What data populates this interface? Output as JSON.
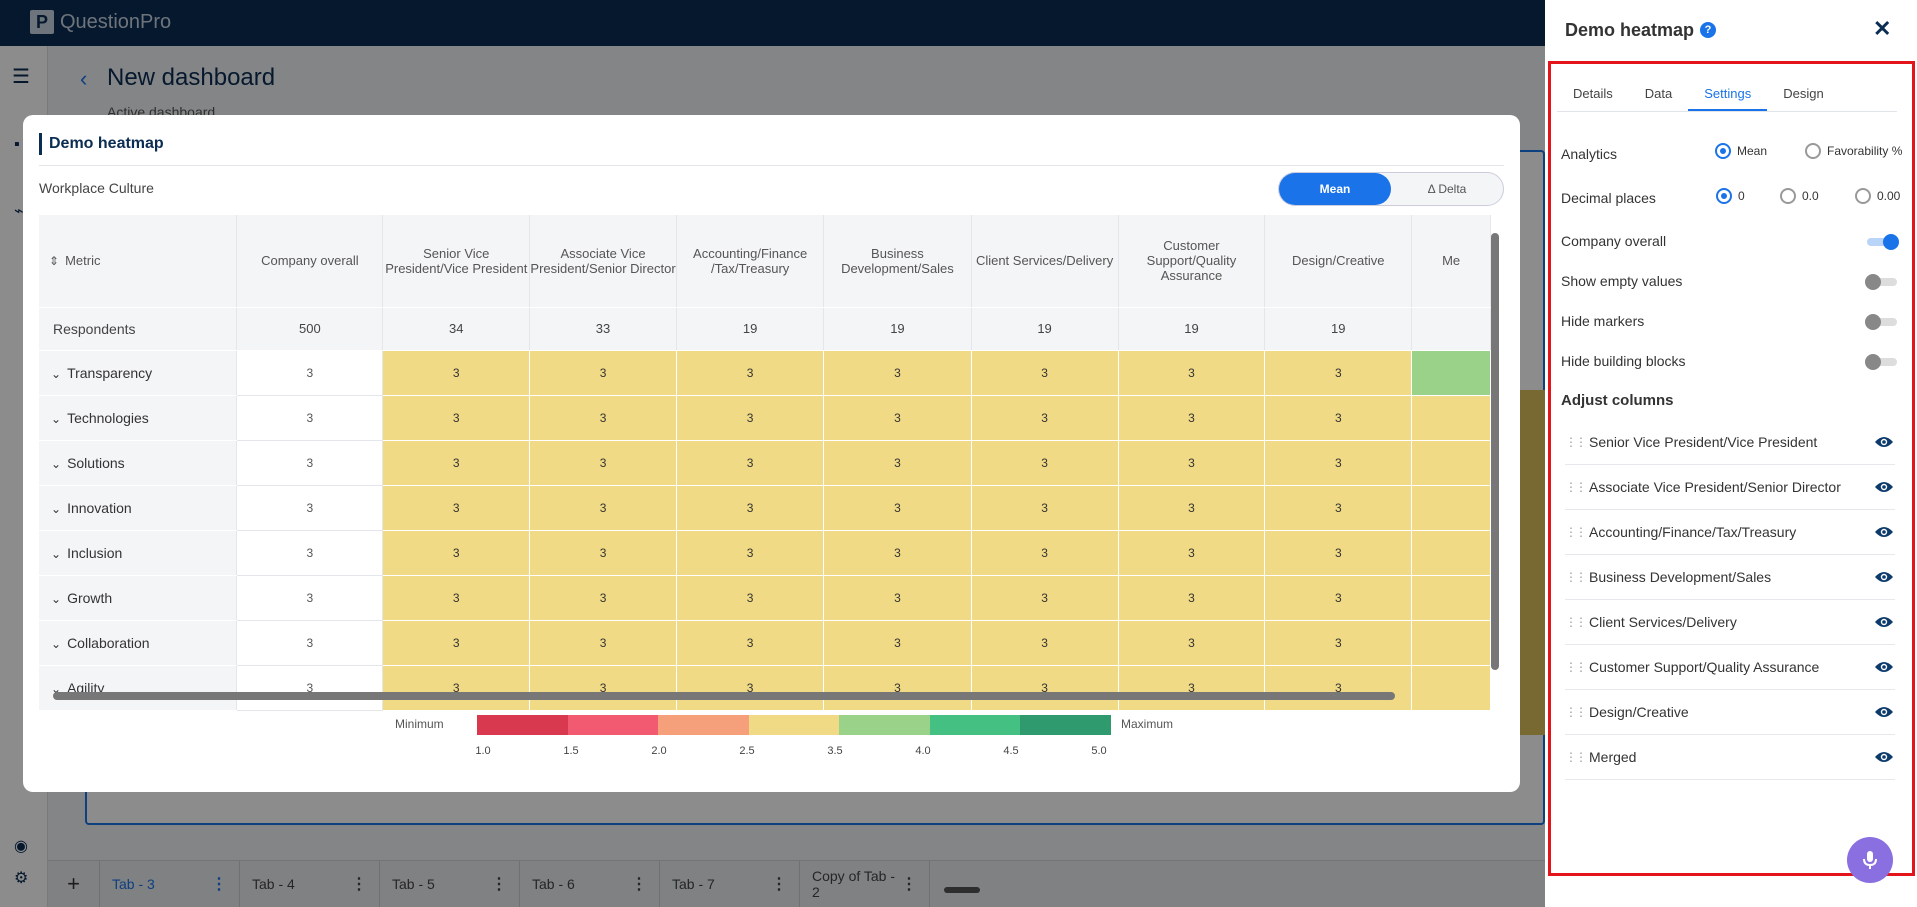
{
  "app": {
    "brand": "QuestionPro"
  },
  "dashboard": {
    "title": "New dashboard",
    "subtitle": "Active dashboard"
  },
  "tabs": [
    {
      "label": "Tab - 3"
    },
    {
      "label": "Tab - 4"
    },
    {
      "label": "Tab - 5"
    },
    {
      "label": "Tab - 6"
    },
    {
      "label": "Tab - 7"
    },
    {
      "label": "Copy of Tab - 2"
    }
  ],
  "modal": {
    "title": "Demo heatmap",
    "subtitle": "Workplace Culture",
    "toggle": {
      "mean": "Mean",
      "delta": "Δ Delta"
    },
    "metric_header": "Metric",
    "columns": [
      "Company overall",
      "Senior Vice President/Vice President",
      "Associate Vice President/Senior Director",
      "Accounting/Finance /Tax/Treasury",
      "Business Development/Sales",
      "Client Services/Delivery",
      "Customer Support/Quality Assurance",
      "Design/Creative",
      "Me"
    ],
    "respondents_label": "Respondents",
    "respondents": [
      "500",
      "34",
      "33",
      "19",
      "19",
      "19",
      "19",
      "19",
      ""
    ],
    "rows": [
      {
        "label": "Transparency",
        "values": [
          "3",
          "3",
          "3",
          "3",
          "3",
          "3",
          "3",
          "3",
          ""
        ]
      },
      {
        "label": "Technologies",
        "values": [
          "3",
          "3",
          "3",
          "3",
          "3",
          "3",
          "3",
          "3",
          ""
        ]
      },
      {
        "label": "Solutions",
        "values": [
          "3",
          "3",
          "3",
          "3",
          "3",
          "3",
          "3",
          "3",
          ""
        ]
      },
      {
        "label": "Innovation",
        "values": [
          "3",
          "3",
          "3",
          "3",
          "3",
          "3",
          "3",
          "3",
          ""
        ]
      },
      {
        "label": "Inclusion",
        "values": [
          "3",
          "3",
          "3",
          "3",
          "3",
          "3",
          "3",
          "3",
          ""
        ]
      },
      {
        "label": "Growth",
        "values": [
          "3",
          "3",
          "3",
          "3",
          "3",
          "3",
          "3",
          "3",
          ""
        ]
      },
      {
        "label": "Collaboration",
        "values": [
          "3",
          "3",
          "3",
          "3",
          "3",
          "3",
          "3",
          "3",
          ""
        ]
      },
      {
        "label": "Agility",
        "values": [
          "3",
          "3",
          "3",
          "3",
          "3",
          "3",
          "3",
          "3",
          ""
        ]
      }
    ],
    "legend": {
      "min_label": "Minimum",
      "max_label": "Maximum",
      "ticks": [
        "1.0",
        "1.5",
        "2.0",
        "2.5",
        "3.5",
        "4.0",
        "4.5",
        "5.0"
      ],
      "colors": [
        "#d9394f",
        "#f25a72",
        "#f5a07a",
        "#f0da85",
        "#9ad28a",
        "#44c083",
        "#2e9a6e"
      ]
    }
  },
  "panel": {
    "title": "Demo heatmap",
    "help": "?",
    "tabs": [
      "Details",
      "Data",
      "Settings",
      "Design"
    ],
    "active_tab": "Settings",
    "analytics": {
      "label": "Analytics",
      "options": [
        "Mean",
        "Favorability %"
      ],
      "selected": "Mean"
    },
    "decimal": {
      "label": "Decimal places",
      "options": [
        "0",
        "0.0",
        "0.00"
      ],
      "selected": "0"
    },
    "toggles": [
      {
        "label": "Company overall",
        "on": true
      },
      {
        "label": "Show empty values",
        "on": false
      },
      {
        "label": "Hide markers",
        "on": false
      },
      {
        "label": "Hide building blocks",
        "on": false
      }
    ],
    "adjust_title": "Adjust columns",
    "columns": [
      "Senior Vice President/Vice President",
      "Associate Vice President/Senior Director",
      "Accounting/Finance/Tax/Treasury",
      "Business Development/Sales",
      "Client Services/Delivery",
      "Customer Support/Quality Assurance",
      "Design/Creative",
      "Merged"
    ]
  },
  "colors": {
    "navy": "#0c2d52",
    "accent": "#1a73e8",
    "heat_mid": "#f0da85",
    "heat_good": "#9ad28a",
    "highlight": "#e3151a"
  }
}
